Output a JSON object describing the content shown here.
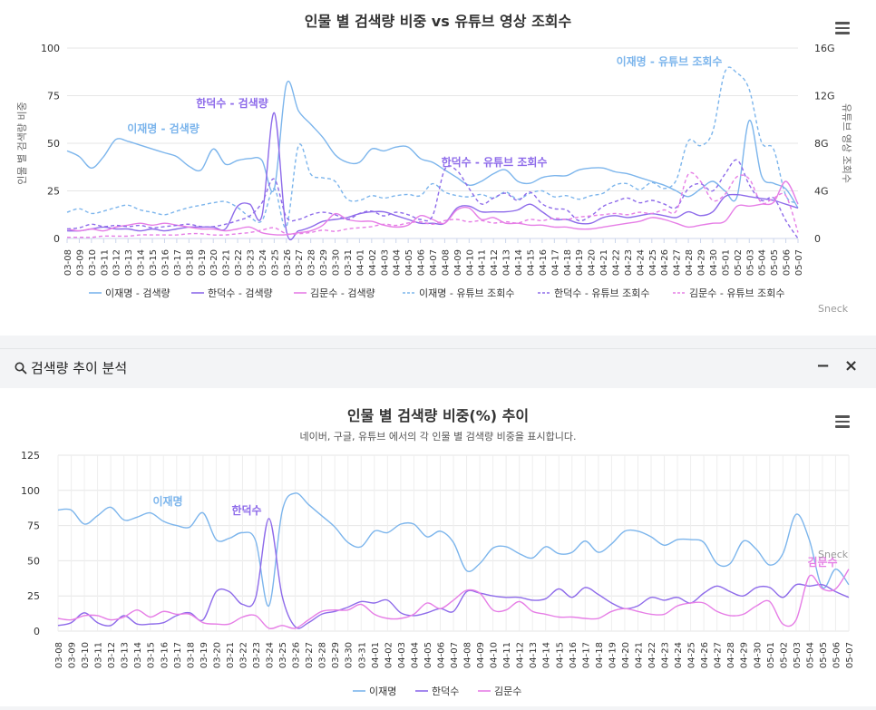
{
  "colors": {
    "lee": "#7cb5ec",
    "han": "#8e6bea",
    "kim": "#e67ee6",
    "grid": "#e6e6e6",
    "axis": "#333"
  },
  "dates": [
    "03-08",
    "03-09",
    "03-10",
    "03-11",
    "03-12",
    "03-13",
    "03-14",
    "03-15",
    "03-16",
    "03-17",
    "03-18",
    "03-19",
    "03-20",
    "03-21",
    "03-22",
    "03-23",
    "03-24",
    "03-25",
    "03-26",
    "03-27",
    "03-28",
    "03-29",
    "03-30",
    "03-31",
    "04-01",
    "04-02",
    "04-03",
    "04-04",
    "04-05",
    "04-06",
    "04-07",
    "04-08",
    "04-09",
    "04-10",
    "04-11",
    "04-12",
    "04-13",
    "04-14",
    "04-15",
    "04-16",
    "04-17",
    "04-18",
    "04-19",
    "04-20",
    "04-21",
    "04-22",
    "04-23",
    "04-24",
    "04-25",
    "04-26",
    "04-27",
    "04-28",
    "04-29",
    "04-30",
    "05-01",
    "05-02",
    "05-03",
    "05-04",
    "05-05",
    "05-06",
    "05-07"
  ],
  "chart1": {
    "title": "인물 별 검색량 비중 vs 유튜브 영상 조회수",
    "left_axis_label": "인물 별 검색량 비중",
    "right_axis_label": "유튜브 영상 조회수",
    "left_ticks": [
      "100",
      "75",
      "50",
      "25",
      "0"
    ],
    "right_ticks": [
      "16G",
      "12G",
      "8G",
      "4G",
      "0"
    ],
    "credit": "Sneck",
    "annotations": [
      {
        "text": "이재명 - 검색량",
        "color": "#7cb5ec"
      },
      {
        "text": "한덕수 - 검색량",
        "color": "#8e6bea"
      },
      {
        "text": "한덕수 - 유튜브 조회수",
        "color": "#8e6bea"
      },
      {
        "text": "이재명 - 유튜브 조회수",
        "color": "#7cb5ec"
      }
    ],
    "legend": [
      "이재명 - 검색량",
      "한덕수 - 검색량",
      "김문수 - 검색량",
      "이재명 - 유튜브 조회수",
      "한덕수 - 유튜브 조회수",
      "김문수 - 유튜브 조회수"
    ]
  },
  "panel": {
    "title": "검색량 추이 분석",
    "minimize": "−",
    "close": "×"
  },
  "chart2": {
    "title": "인물 별 검색량 비중(%) 추이",
    "subtitle": "네이버, 구글, 유튜브 에서의 각 인물 별 검색량 비중을 표시합니다.",
    "y_ticks": [
      "125",
      "100",
      "75",
      "50",
      "25",
      "0"
    ],
    "credit": "Sneck",
    "annotations": [
      {
        "text": "이재명",
        "color": "#7cb5ec"
      },
      {
        "text": "한덕수",
        "color": "#8e6bea"
      },
      {
        "text": "김문수",
        "color": "#e67ee6"
      }
    ],
    "legend": [
      "이재명",
      "한덕수",
      "김문수"
    ]
  },
  "chart_data": [
    {
      "type": "line",
      "title": "인물 별 검색량 비중 vs 유튜브 영상 조회수",
      "ylabel": "인물 별 검색량 비중",
      "y2label": "유튜브 영상 조회수",
      "ylim": [
        0,
        100
      ],
      "y2lim": [
        0,
        16
      ],
      "y2unit": "G",
      "series": [
        {
          "name": "이재명 - 검색량",
          "axis": "left",
          "values": [
            46,
            43,
            37,
            43,
            52,
            51,
            49,
            47,
            45,
            43,
            38,
            36,
            47,
            39,
            41,
            42,
            41,
            26,
            81,
            67,
            60,
            53,
            44,
            40,
            40,
            47,
            46,
            48,
            48,
            42,
            40,
            36,
            32,
            28,
            30,
            34,
            36,
            30,
            29,
            32,
            33,
            33,
            36,
            37,
            37,
            35,
            34,
            32,
            30,
            28,
            25,
            22,
            26,
            30,
            25,
            22,
            62,
            33,
            29,
            26,
            16
          ]
        },
        {
          "name": "한덕수 - 검색량",
          "axis": "left",
          "values": [
            4,
            4,
            5,
            6,
            5,
            5,
            4,
            5,
            4,
            5,
            6,
            6,
            6,
            5,
            17,
            18,
            12,
            66,
            4,
            4,
            6,
            9,
            10,
            11,
            13,
            14,
            14,
            12,
            10,
            8,
            8,
            8,
            16,
            17,
            14,
            14,
            14,
            15,
            18,
            14,
            10,
            10,
            8,
            8,
            11,
            12,
            11,
            12,
            13,
            12,
            11,
            14,
            12,
            14,
            22,
            23,
            22,
            21,
            20,
            18,
            16
          ]
        },
        {
          "name": "김문수 - 검색량",
          "axis": "left",
          "values": [
            5,
            4,
            5,
            4,
            6,
            7,
            8,
            7,
            8,
            7,
            6,
            5,
            5,
            4,
            5,
            6,
            3,
            2,
            2,
            3,
            4,
            7,
            13,
            10,
            9,
            9,
            7,
            6,
            7,
            12,
            10,
            8,
            15,
            16,
            10,
            11,
            8,
            8,
            7,
            7,
            6,
            6,
            5,
            5,
            6,
            7,
            8,
            9,
            11,
            10,
            8,
            6,
            7,
            8,
            9,
            17,
            17,
            18,
            19,
            30,
            18
          ]
        },
        {
          "name": "이재명 - 유튜브 조회수",
          "axis": "right",
          "values": [
            2.2,
            2.5,
            2.1,
            2.3,
            2.6,
            2.8,
            2.4,
            2.2,
            2.0,
            2.3,
            2.6,
            2.8,
            3.0,
            3.1,
            2.6,
            1.8,
            1.5,
            4.2,
            1.0,
            7.8,
            5.4,
            5.1,
            4.8,
            3.3,
            3.2,
            3.6,
            3.4,
            3.6,
            3.7,
            3.6,
            4.6,
            3.9,
            3.6,
            3.5,
            3.7,
            3.4,
            3.9,
            3.3,
            3.8,
            4.0,
            3.5,
            3.6,
            3.3,
            3.6,
            3.8,
            4.5,
            4.6,
            4.1,
            4.7,
            4.2,
            4.9,
            8.2,
            7.8,
            9.0,
            14.0,
            13.9,
            12.5,
            8.1,
            7.5,
            3.6,
            3.0
          ]
        },
        {
          "name": "한덕수 - 유튜브 조회수",
          "axis": "right",
          "values": [
            0.8,
            0.9,
            1.2,
            1.0,
            1.1,
            1.0,
            1.1,
            0.9,
            1.0,
            1.1,
            1.2,
            1.0,
            1.0,
            1.2,
            1.5,
            1.9,
            3.0,
            5.0,
            1.8,
            1.6,
            2.0,
            2.2,
            2.0,
            1.6,
            2.1,
            2.3,
            1.9,
            2.2,
            2.0,
            1.6,
            1.9,
            5.8,
            5.7,
            4.2,
            2.9,
            3.4,
            3.8,
            3.2,
            3.9,
            2.9,
            2.5,
            2.4,
            1.5,
            1.9,
            2.7,
            3.1,
            3.4,
            3.0,
            3.2,
            2.9,
            2.6,
            4.2,
            4.6,
            4.0,
            5.4,
            6.6,
            4.5,
            3.2,
            3.4,
            1.5,
            0.0
          ]
        },
        {
          "name": "김문수 - 유튜브 조회수",
          "axis": "right",
          "values": [
            0.1,
            0.1,
            0.1,
            0.2,
            0.2,
            0.2,
            0.3,
            0.3,
            0.3,
            0.3,
            0.4,
            0.4,
            0.3,
            0.3,
            0.4,
            0.5,
            0.7,
            0.9,
            0.4,
            0.4,
            0.5,
            0.7,
            0.6,
            0.8,
            0.9,
            1.0,
            1.2,
            1.1,
            1.3,
            1.4,
            1.2,
            1.5,
            1.6,
            1.4,
            1.5,
            1.3,
            1.4,
            1.3,
            1.6,
            1.5,
            1.7,
            1.6,
            1.8,
            1.9,
            2.0,
            2.1,
            2.0,
            2.2,
            2.1,
            2.4,
            2.3,
            5.4,
            4.8,
            3.2,
            3.7,
            5.2,
            5.0,
            3.0,
            3.4,
            3.6,
            0.5
          ]
        }
      ]
    },
    {
      "type": "line",
      "title": "인물 별 검색량 비중(%) 추이",
      "ylim": [
        0,
        125
      ],
      "series": [
        {
          "name": "이재명",
          "values": [
            86,
            86,
            76,
            82,
            88,
            79,
            81,
            84,
            78,
            75,
            74,
            84,
            65,
            66,
            70,
            64,
            18,
            85,
            98,
            90,
            82,
            74,
            63,
            60,
            71,
            70,
            76,
            76,
            67,
            71,
            63,
            43,
            48,
            59,
            60,
            55,
            52,
            60,
            55,
            56,
            64,
            56,
            62,
            71,
            71,
            67,
            61,
            65,
            65,
            63,
            48,
            48,
            64,
            58,
            47,
            55,
            83,
            65,
            31,
            44,
            33
          ]
        },
        {
          "name": "한덕수",
          "values": [
            4,
            6,
            13,
            6,
            4,
            11,
            5,
            5,
            6,
            11,
            13,
            8,
            28,
            28,
            19,
            24,
            80,
            25,
            3,
            6,
            12,
            14,
            17,
            21,
            20,
            22,
            13,
            11,
            13,
            16,
            14,
            28,
            27,
            25,
            24,
            24,
            22,
            23,
            30,
            24,
            31,
            26,
            20,
            16,
            18,
            24,
            22,
            24,
            20,
            27,
            32,
            28,
            25,
            31,
            31,
            24,
            33,
            32,
            33,
            28,
            24
          ]
        },
        {
          "name": "김문수",
          "values": [
            9,
            8,
            11,
            11,
            8,
            10,
            15,
            10,
            14,
            12,
            12,
            6,
            5,
            5,
            10,
            11,
            2,
            4,
            2,
            8,
            14,
            15,
            15,
            19,
            12,
            9,
            9,
            12,
            20,
            16,
            22,
            29,
            27,
            15,
            15,
            21,
            14,
            12,
            10,
            10,
            9,
            9,
            14,
            16,
            14,
            12,
            12,
            18,
            20,
            20,
            14,
            11,
            12,
            18,
            21,
            5,
            8,
            39,
            30,
            30,
            44
          ]
        }
      ]
    }
  ]
}
